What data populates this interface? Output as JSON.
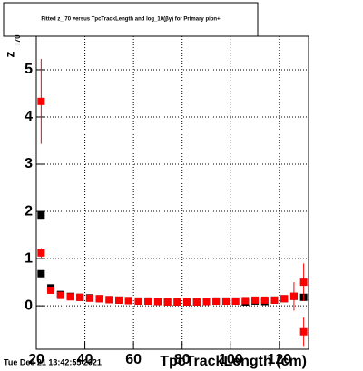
{
  "chart_data": {
    "type": "scatter",
    "title": "Fitted  z_I70 versus TpcTrackLength and log_10(βγ) for Primary pion+",
    "x_label": "TpcTrackLength (cm)",
    "y_label": "z",
    "y_label_sub": "I70",
    "timestamp": "Tue Dec 21 13:42:55 2021",
    "xlim": [
      20,
      132
    ],
    "ylim": [
      -0.92,
      5.71
    ],
    "xticks": [
      20,
      40,
      60,
      80,
      100,
      120
    ],
    "yticks": [
      0,
      1,
      2,
      3,
      4,
      5
    ],
    "grid": true,
    "series": [
      {
        "color": "#000000",
        "x": [
          22,
          22,
          26,
          30,
          34,
          38,
          42,
          46,
          50,
          54,
          58,
          62,
          66,
          70,
          74,
          78,
          82,
          86,
          90,
          94,
          98,
          102,
          106,
          110,
          114,
          118,
          122,
          126,
          130
        ],
        "values": [
          1.92,
          0.68,
          0.38,
          0.24,
          0.2,
          0.18,
          0.17,
          0.15,
          0.13,
          0.12,
          0.11,
          0.1,
          0.1,
          0.09,
          0.08,
          0.08,
          0.08,
          0.08,
          0.09,
          0.1,
          0.1,
          0.1,
          0.08,
          0.1,
          0.09,
          0.12,
          0.15,
          0.2,
          0.18
        ]
      },
      {
        "color": "#ff0000",
        "x": [
          22,
          22,
          26,
          30,
          34,
          38,
          42,
          46,
          50,
          54,
          58,
          62,
          66,
          70,
          74,
          78,
          82,
          86,
          90,
          94,
          98,
          102,
          106,
          110,
          114,
          118,
          122,
          126,
          130,
          130
        ],
        "values": [
          4.33,
          1.12,
          0.33,
          0.22,
          0.19,
          0.18,
          0.16,
          0.15,
          0.13,
          0.12,
          0.11,
          0.1,
          0.1,
          0.09,
          0.08,
          0.08,
          0.08,
          0.08,
          0.09,
          0.1,
          0.1,
          0.1,
          0.11,
          0.12,
          0.12,
          0.12,
          0.15,
          0.2,
          0.5,
          -0.55
        ],
        "errors": [
          0.9,
          0.1,
          0.06,
          0.03,
          0.02,
          0.02,
          0.02,
          0.02,
          0.02,
          0.02,
          0.02,
          0.02,
          0.02,
          0.02,
          0.02,
          0.02,
          0.02,
          0.02,
          0.02,
          0.02,
          0.02,
          0.03,
          0.03,
          0.03,
          0.04,
          0.04,
          0.06,
          0.3,
          0.4,
          0.3
        ]
      }
    ]
  }
}
